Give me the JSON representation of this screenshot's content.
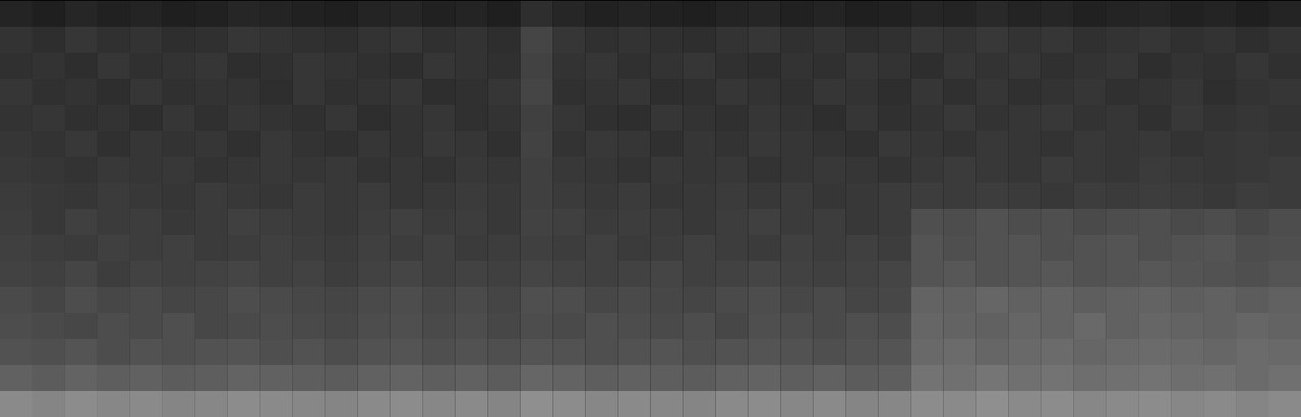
{
  "chart_data": {
    "type": "heatmap",
    "tick_labels": false,
    "values": [
      [
        14,
        12,
        15,
        13,
        14,
        12,
        13,
        15,
        14,
        13,
        12,
        14,
        15,
        13,
        14,
        12,
        18,
        15,
        13,
        14,
        13,
        12,
        14,
        15,
        13,
        14,
        12,
        13,
        15,
        14,
        16,
        14,
        15,
        13,
        14,
        15,
        13,
        14,
        12,
        14
      ],
      [
        20,
        18,
        21,
        19,
        20,
        18,
        19,
        21,
        20,
        19,
        18,
        20,
        21,
        19,
        20,
        18,
        27,
        21,
        19,
        20,
        19,
        18,
        20,
        21,
        19,
        20,
        18,
        19,
        21,
        20,
        22,
        20,
        21,
        19,
        20,
        21,
        19,
        20,
        18,
        20
      ],
      [
        19,
        20,
        18,
        21,
        19,
        20,
        21,
        18,
        19,
        21,
        20,
        19,
        18,
        21,
        20,
        19,
        26,
        20,
        21,
        19,
        20,
        21,
        19,
        18,
        20,
        19,
        21,
        20,
        18,
        21,
        20,
        21,
        19,
        20,
        21,
        18,
        20,
        19,
        21,
        19
      ],
      [
        21,
        19,
        20,
        18,
        21,
        19,
        20,
        20,
        18,
        21,
        19,
        20,
        21,
        18,
        19,
        21,
        27,
        19,
        20,
        21,
        18,
        19,
        21,
        20,
        19,
        21,
        20,
        18,
        21,
        19,
        21,
        19,
        20,
        21,
        19,
        20,
        21,
        18,
        20,
        21
      ],
      [
        20,
        21,
        19,
        20,
        18,
        21,
        19,
        21,
        20,
        19,
        21,
        18,
        20,
        21,
        19,
        20,
        25,
        21,
        19,
        18,
        21,
        20,
        19,
        21,
        20,
        18,
        21,
        19,
        20,
        22,
        20,
        21,
        22,
        20,
        21,
        19,
        22,
        20,
        21,
        20
      ],
      [
        21,
        20,
        22,
        19,
        21,
        20,
        21,
        19,
        22,
        20,
        19,
        21,
        20,
        22,
        21,
        19,
        26,
        20,
        22,
        21,
        19,
        21,
        20,
        22,
        21,
        20,
        19,
        22,
        21,
        20,
        22,
        21,
        20,
        22,
        21,
        22,
        20,
        21,
        22,
        21
      ],
      [
        22,
        21,
        20,
        22,
        21,
        22,
        20,
        21,
        22,
        21,
        22,
        20,
        21,
        20,
        22,
        21,
        25,
        22,
        21,
        20,
        22,
        21,
        22,
        20,
        21,
        22,
        21,
        20,
        22,
        23,
        22,
        21,
        23,
        22,
        21,
        23,
        22,
        21,
        22,
        23
      ],
      [
        23,
        22,
        21,
        23,
        22,
        21,
        23,
        22,
        21,
        23,
        22,
        23,
        21,
        22,
        23,
        22,
        25,
        23,
        22,
        23,
        21,
        22,
        23,
        22,
        23,
        21,
        22,
        23,
        24,
        23,
        24,
        23,
        22,
        24,
        23,
        24,
        23,
        22,
        24,
        23
      ],
      [
        24,
        22,
        25,
        23,
        24,
        22,
        23,
        25,
        24,
        23,
        22,
        24,
        25,
        23,
        24,
        22,
        26,
        25,
        23,
        24,
        23,
        22,
        24,
        25,
        23,
        24,
        22,
        23,
        31,
        30,
        32,
        30,
        31,
        29,
        30,
        31,
        29,
        30,
        28,
        30
      ],
      [
        25,
        24,
        23,
        25,
        24,
        25,
        23,
        24,
        25,
        24,
        23,
        25,
        24,
        25,
        23,
        24,
        25,
        24,
        25,
        23,
        24,
        25,
        24,
        23,
        25,
        24,
        25,
        24,
        33,
        31,
        32,
        33,
        31,
        32,
        33,
        31,
        32,
        33,
        30,
        31
      ],
      [
        26,
        25,
        27,
        24,
        26,
        25,
        26,
        27,
        25,
        26,
        24,
        26,
        27,
        25,
        26,
        25,
        27,
        26,
        25,
        26,
        27,
        25,
        26,
        27,
        26,
        25,
        26,
        27,
        33,
        34,
        32,
        33,
        34,
        32,
        33,
        34,
        33,
        32,
        31,
        33
      ],
      [
        29,
        27,
        30,
        28,
        29,
        27,
        28,
        30,
        29,
        28,
        27,
        29,
        30,
        28,
        29,
        27,
        31,
        30,
        28,
        29,
        28,
        27,
        29,
        30,
        28,
        29,
        27,
        28,
        39,
        38,
        40,
        38,
        39,
        37,
        38,
        39,
        37,
        38,
        36,
        38
      ],
      [
        30,
        29,
        28,
        30,
        29,
        31,
        28,
        29,
        30,
        29,
        28,
        30,
        31,
        29,
        30,
        28,
        30,
        29,
        31,
        30,
        29,
        30,
        28,
        31,
        30,
        29,
        31,
        30,
        40,
        39,
        38,
        40,
        39,
        41,
        38,
        40,
        39,
        38,
        40,
        39
      ],
      [
        32,
        31,
        33,
        30,
        32,
        31,
        32,
        33,
        31,
        32,
        30,
        32,
        33,
        31,
        32,
        31,
        33,
        32,
        31,
        32,
        33,
        31,
        32,
        33,
        32,
        31,
        32,
        33,
        41,
        42,
        40,
        41,
        42,
        40,
        41,
        42,
        41,
        40,
        42,
        41
      ],
      [
        38,
        36,
        39,
        37,
        38,
        36,
        37,
        39,
        38,
        37,
        36,
        38,
        39,
        37,
        38,
        36,
        40,
        39,
        37,
        38,
        37,
        36,
        38,
        39,
        37,
        38,
        36,
        37,
        45,
        44,
        46,
        44,
        45,
        43,
        44,
        45,
        43,
        44,
        42,
        44
      ],
      [
        54,
        52,
        55,
        53,
        54,
        52,
        53,
        55,
        54,
        53,
        52,
        54,
        55,
        53,
        54,
        52,
        56,
        55,
        53,
        54,
        53,
        52,
        54,
        55,
        53,
        54,
        52,
        53,
        55,
        54,
        56,
        54,
        55,
        53,
        54,
        55,
        53,
        54,
        52,
        54
      ]
    ]
  }
}
